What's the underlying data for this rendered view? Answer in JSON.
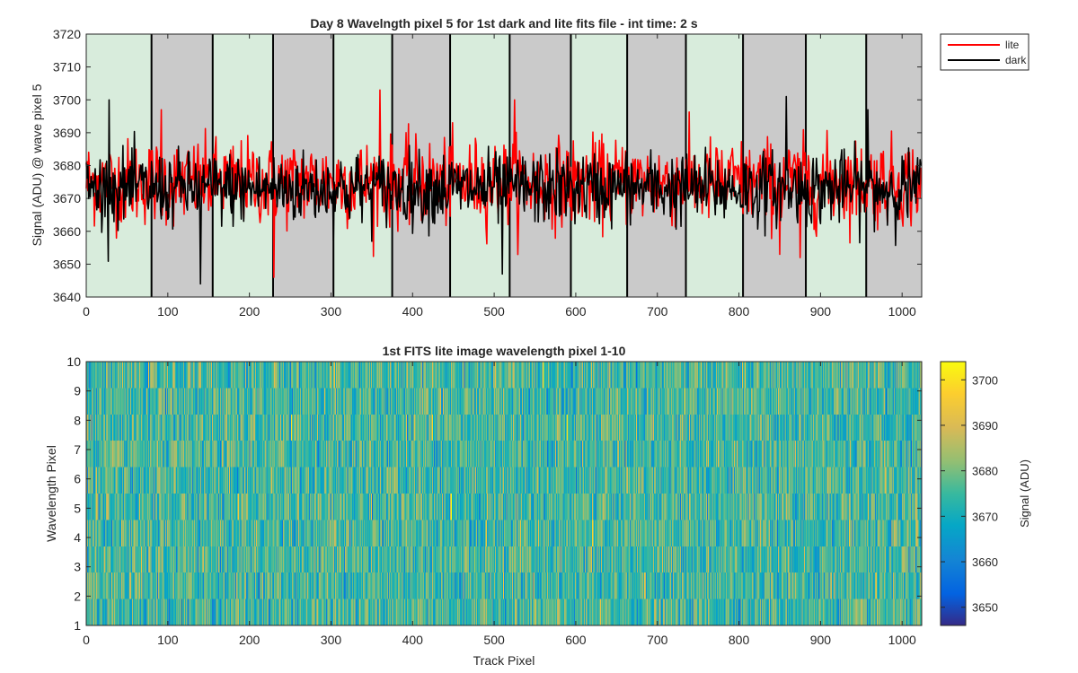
{
  "chart_data": [
    {
      "type": "line",
      "title": "Day 8 Wavelngth pixel 5 for 1st dark and lite fits file - int time: 2 s",
      "xlabel": "",
      "ylabel": "Signal (ADU) @ wave pixel 5",
      "xlim": [
        0,
        1024
      ],
      "ylim": [
        3640,
        3720
      ],
      "xticks": [
        0,
        100,
        200,
        300,
        400,
        500,
        600,
        700,
        800,
        900,
        1000
      ],
      "yticks": [
        3640,
        3650,
        3660,
        3670,
        3680,
        3690,
        3700,
        3710,
        3720
      ],
      "legend_position": "outside top-right",
      "background_bands": {
        "edges": [
          0,
          80,
          155,
          229,
          303,
          375,
          446,
          519,
          594,
          663,
          735,
          805,
          882,
          956,
          1024
        ],
        "colors": [
          "#d8ecdc",
          "#cacaca",
          "#d8ecdc",
          "#cacaca",
          "#d8ecdc",
          "#cacaca",
          "#d8ecdc",
          "#cacaca",
          "#d8ecdc",
          "#cacaca",
          "#d8ecdc",
          "#cacaca",
          "#d8ecdc",
          "#cacaca"
        ]
      },
      "series": [
        {
          "name": "lite",
          "color": "#ff0000",
          "n_points": 1024,
          "mean": 3675,
          "std": 6.5,
          "approx_min": 3646,
          "approx_max": 3706,
          "notable_points": [
            [
              230,
              3646
            ],
            [
              92,
              3697
            ],
            [
              360,
              3703
            ],
            [
              525,
              3700
            ],
            [
              875,
              3652
            ],
            [
              850,
              3653
            ]
          ]
        },
        {
          "name": "dark",
          "color": "#000000",
          "n_points": 1024,
          "mean": 3673,
          "std": 5.5,
          "approx_min": 3644,
          "approx_max": 3701,
          "notable_points": [
            [
              140,
              3644
            ],
            [
              28,
              3700
            ],
            [
              510,
              3647
            ],
            [
              858,
              3701
            ],
            [
              958,
              3697
            ]
          ]
        }
      ]
    },
    {
      "type": "heatmap",
      "title": "1st FITS lite image wavelength pixel 1-10",
      "xlabel": "Track Pixel",
      "ylabel": "Wavelength Pixel",
      "xlim": [
        0,
        1024
      ],
      "ylim": [
        1,
        10
      ],
      "xticks": [
        0,
        100,
        200,
        300,
        400,
        500,
        600,
        700,
        800,
        900,
        1000
      ],
      "yticks": [
        1,
        2,
        3,
        4,
        5,
        6,
        7,
        8,
        9,
        10
      ],
      "rows": 10,
      "cols": 1024,
      "value_mean": 3675,
      "value_std": 7,
      "colorbar": {
        "label": "Signal (ADU)",
        "range": [
          3646,
          3704
        ],
        "ticks": [
          3650,
          3660,
          3670,
          3680,
          3690,
          3700
        ],
        "colormap": "parula"
      }
    }
  ]
}
